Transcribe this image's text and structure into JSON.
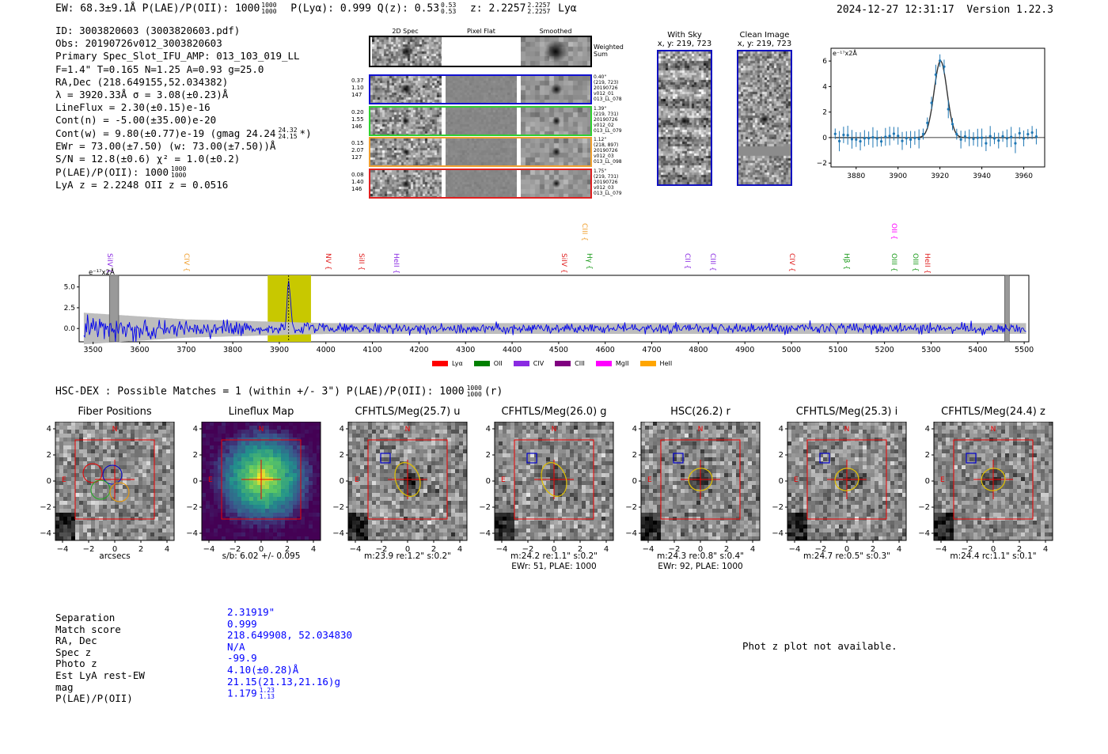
{
  "header": {
    "left": "EW: 68.3±9.1Å  P(LAE)/P(OII): 1000",
    "plae_sup": "1000",
    "plae_sub": "1000",
    "ply": "P(Lyα): 0.999  Q(z): 0.53",
    "qz_sup": "0.53",
    "qz_sub": "0.53",
    "z": "z: 2.2257",
    "z_sup": "2.2257",
    "z_sub": "2.2257",
    "z_line": "Lyα",
    "datetime": "2024-12-27 12:31:17",
    "version": "Version 1.22.3"
  },
  "info": {
    "lines": [
      "ID: 3003820603 (3003820603.pdf)",
      "Obs: 20190726v012_3003820603",
      "Primary Spec_Slot_IFU_AMP: 013_103_019_LL",
      "F=1.4\"  T=0.165  N=1.25  A=0.93  g=25.0",
      "RA,Dec (218.649155,52.034382)",
      "λ = 3920.33Å  σ = 3.08(±0.23)Å",
      "LineFlux = 2.30(±0.15)e-16",
      "Cont(n) = -5.00(±35.00)e-20",
      "Cont(w) = 9.80(±0.77)e-19 (gmag 24.24",
      "EWr = 73.00(±7.50) (w: 73.00(±7.50))Å",
      "S/N = 12.8(±0.6)  χ² = 1.0(±0.2)",
      "P(LAE)/P(OII): 1000",
      "LyA z = 2.2248  OII z = 0.0516"
    ],
    "gmag_sup": "24.32",
    "gmag_sub": "24.15",
    "gmag_close": "*)",
    "plae_sup": "1000",
    "plae_sub": "1000"
  },
  "fiber_grid": {
    "col_headers": [
      "2D Spec",
      "Pixel Flat",
      "Smoothed"
    ],
    "weighted_label": "Weighted Sum",
    "rows": [
      {
        "left": [
          "0.37",
          "1.10",
          "147"
        ],
        "right": [
          "0.40\"",
          "(219, 723)",
          "20190726",
          "v012_01",
          "013_LL_078"
        ],
        "color": "#1010d0"
      },
      {
        "left": [
          "0.20",
          "1.55",
          "146"
        ],
        "right": [
          "1.39\"",
          "(219, 731)",
          "20190726",
          "v012_02",
          "013_LL_079"
        ],
        "color": "#30d030"
      },
      {
        "left": [
          "0.15",
          "2.07",
          "127"
        ],
        "right": [
          "1.12\"",
          "(218, 897)",
          "20190726",
          "v012_03",
          "013_LL_098"
        ],
        "color": "#f0a030"
      },
      {
        "left": [
          "0.08",
          "1.40",
          "146"
        ],
        "right": [
          "1.75\"",
          "(219, 731)",
          "20190726",
          "v012_03",
          "013_LL_079"
        ],
        "color": "#e02020"
      }
    ]
  },
  "sky_panels": [
    {
      "title": "With Sky",
      "subtitle": "x, y: 219, 723"
    },
    {
      "title": "Clean Image",
      "subtitle": "x, y: 219, 723"
    }
  ],
  "line_fit": {
    "ylabel": "e⁻¹⁷x2Å",
    "y_ticks": [
      "6",
      "4",
      "2",
      "0",
      "−2"
    ],
    "x_ticks": [
      "3880",
      "3900",
      "3920",
      "3940",
      "3960"
    ]
  },
  "full_spectrum": {
    "ylabel": "e⁻¹⁷x2Å",
    "y_ticks": [
      "5.0",
      "2.5",
      "0.0"
    ],
    "x_ticks": [
      "3500",
      "3600",
      "3700",
      "3800",
      "3900",
      "4000",
      "4100",
      "4200",
      "4300",
      "4400",
      "4500",
      "4600",
      "4700",
      "4800",
      "4900",
      "5000",
      "5100",
      "5200",
      "5300",
      "5400",
      "5500"
    ],
    "lines": [
      {
        "label": "SiIV",
        "wave": 3535,
        "color": "#8a2be2",
        "row": 0
      },
      {
        "label": "CIV",
        "wave": 3700,
        "color": "#f0a030",
        "row": 0
      },
      {
        "label": "NV",
        "wave": 4003,
        "color": "#e02020",
        "row": 0
      },
      {
        "label": "SiII",
        "wave": 4075,
        "color": "#e02020",
        "row": 0
      },
      {
        "label": "HeII",
        "wave": 4150,
        "color": "#8a2be2",
        "row": 0
      },
      {
        "label": "CIII",
        "wave": 4555,
        "color": "#f0a030",
        "row": 1
      },
      {
        "label": "SiIV",
        "wave": 4510,
        "color": "#e02020",
        "row": 0
      },
      {
        "label": "Hγ",
        "wave": 4565,
        "color": "#1a9a1a",
        "row": 0
      },
      {
        "label": "CII",
        "wave": 4775,
        "color": "#8a2be2",
        "row": 0
      },
      {
        "label": "CIII",
        "wave": 4830,
        "color": "#8a2be2",
        "row": 0
      },
      {
        "label": "CIV",
        "wave": 5000,
        "color": "#e02020",
        "row": 0
      },
      {
        "label": "Hβ",
        "wave": 5118,
        "color": "#1a9a1a",
        "row": 0
      },
      {
        "label": "OII",
        "wave": 5220,
        "color": "#ff00ff",
        "row": 1
      },
      {
        "label": "OIII",
        "wave": 5220,
        "color": "#1a9a1a",
        "row": 0
      },
      {
        "label": "OIII",
        "wave": 5265,
        "color": "#1a9a1a",
        "row": 0
      },
      {
        "label": "HeII",
        "wave": 5290,
        "color": "#e02020",
        "row": 0
      }
    ],
    "legend": [
      {
        "label": "Lyα",
        "color": "#ff0000"
      },
      {
        "label": "OII",
        "color": "#008000"
      },
      {
        "label": "CIV",
        "color": "#8a2be2"
      },
      {
        "label": "CIII",
        "color": "#800080"
      },
      {
        "label": "MgII",
        "color": "#ff00ff"
      },
      {
        "label": "HeII",
        "color": "#ffa500"
      }
    ]
  },
  "hsc": {
    "title": "HSC-DEX : Possible Matches = 1 (within +/- 3\")  P(LAE)/P(OII): 1000",
    "sup": "1000",
    "sub": "1000",
    "suffix": "(r)"
  },
  "cutouts": [
    {
      "title": "Fiber Positions",
      "cap1": "arcsecs",
      "cap2": ""
    },
    {
      "title": "Lineflux Map",
      "cap1": "s/b: 6.02 +/- 0.095",
      "cap2": ""
    },
    {
      "title": "CFHTLS/Meg(25.7) u",
      "cap1": "m:23.9  re:1.2\"  s:0.2\"",
      "cap2": ""
    },
    {
      "title": "CFHTLS/Meg(26.0) g",
      "cap1": "m:24.2  re:1.1\"  s:0.2\"",
      "cap2": "EWr: 51, PLAE: 1000"
    },
    {
      "title": "HSC(26.2) r",
      "cap1": "m:24.3  re:0.8\"  s:0.4\"",
      "cap2": "EWr: 92, PLAE: 1000"
    },
    {
      "title": "CFHTLS/Meg(25.3) i",
      "cap1": "m:24.7  re:0.5\"  s:0.3\"",
      "cap2": ""
    },
    {
      "title": "CFHTLS/Meg(24.4) z",
      "cap1": "m:24.4 rc:1.1\"  s:0.1\"",
      "cap2": ""
    }
  ],
  "cutout_axis": {
    "y_ticks": [
      "4",
      "2",
      "0",
      "−2",
      "−4"
    ],
    "x_ticks": [
      "−4",
      "−2",
      "0",
      "2",
      "4"
    ],
    "north": "N",
    "east": "E"
  },
  "match": {
    "labels": [
      "Separation",
      "Match score",
      "RA, Dec",
      "Spec z",
      "Photo z",
      "Est LyA rest-EW",
      "mag",
      "P(LAE)/P(OII)"
    ],
    "values": [
      "2.31919\"",
      "0.999",
      "218.649908, 52.034830",
      "N/A",
      "-99.9",
      "4.10(±0.28)Å",
      "21.15(21.13,21.16)g",
      "1.179"
    ],
    "plae_sup": "1.23",
    "plae_sub": "1.13"
  },
  "photz_note": "Phot z plot not available."
}
